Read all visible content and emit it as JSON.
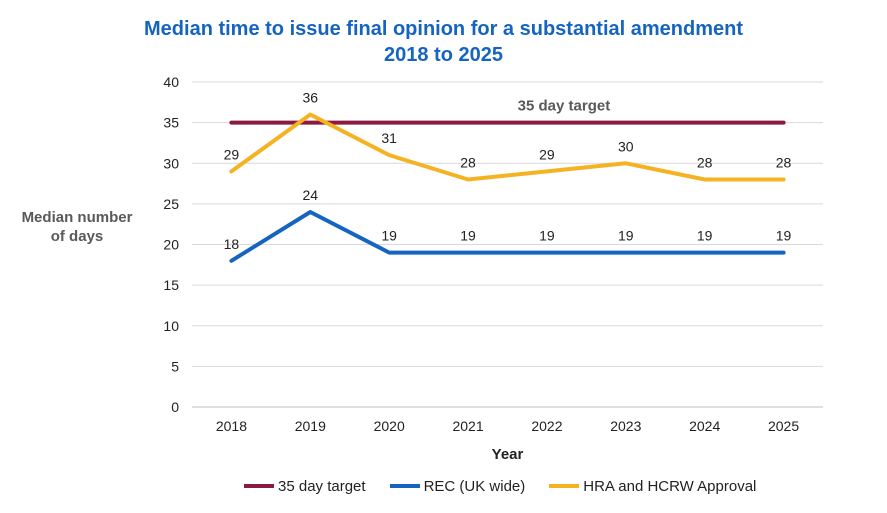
{
  "chart_data": {
    "type": "line",
    "title_line1": "Median time to issue final opinion for a substantial amendment",
    "title_line2": "2018 to 2025",
    "xlabel": "Year",
    "ylabel_line1": "Median number",
    "ylabel_line2": "of days",
    "categories": [
      "2018",
      "2019",
      "2020",
      "2021",
      "2022",
      "2023",
      "2024",
      "2025"
    ],
    "ylim": [
      0,
      40
    ],
    "yticks": [
      0,
      5,
      10,
      15,
      20,
      25,
      30,
      35,
      40
    ],
    "grid": true,
    "legend_position": "bottom",
    "series": [
      {
        "name": "35 day target",
        "color": "#8b1a3e",
        "values": [
          35,
          35,
          35,
          35,
          35,
          35,
          35,
          35
        ],
        "label": "35 day target"
      },
      {
        "name": "REC (UK wide)",
        "color": "#1565c0",
        "values": [
          18,
          24,
          19,
          19,
          19,
          19,
          19,
          19
        ]
      },
      {
        "name": "HRA and HCRW Approval",
        "color": "#f5b323",
        "values": [
          29,
          36,
          31,
          28,
          29,
          30,
          28,
          28
        ]
      }
    ]
  }
}
